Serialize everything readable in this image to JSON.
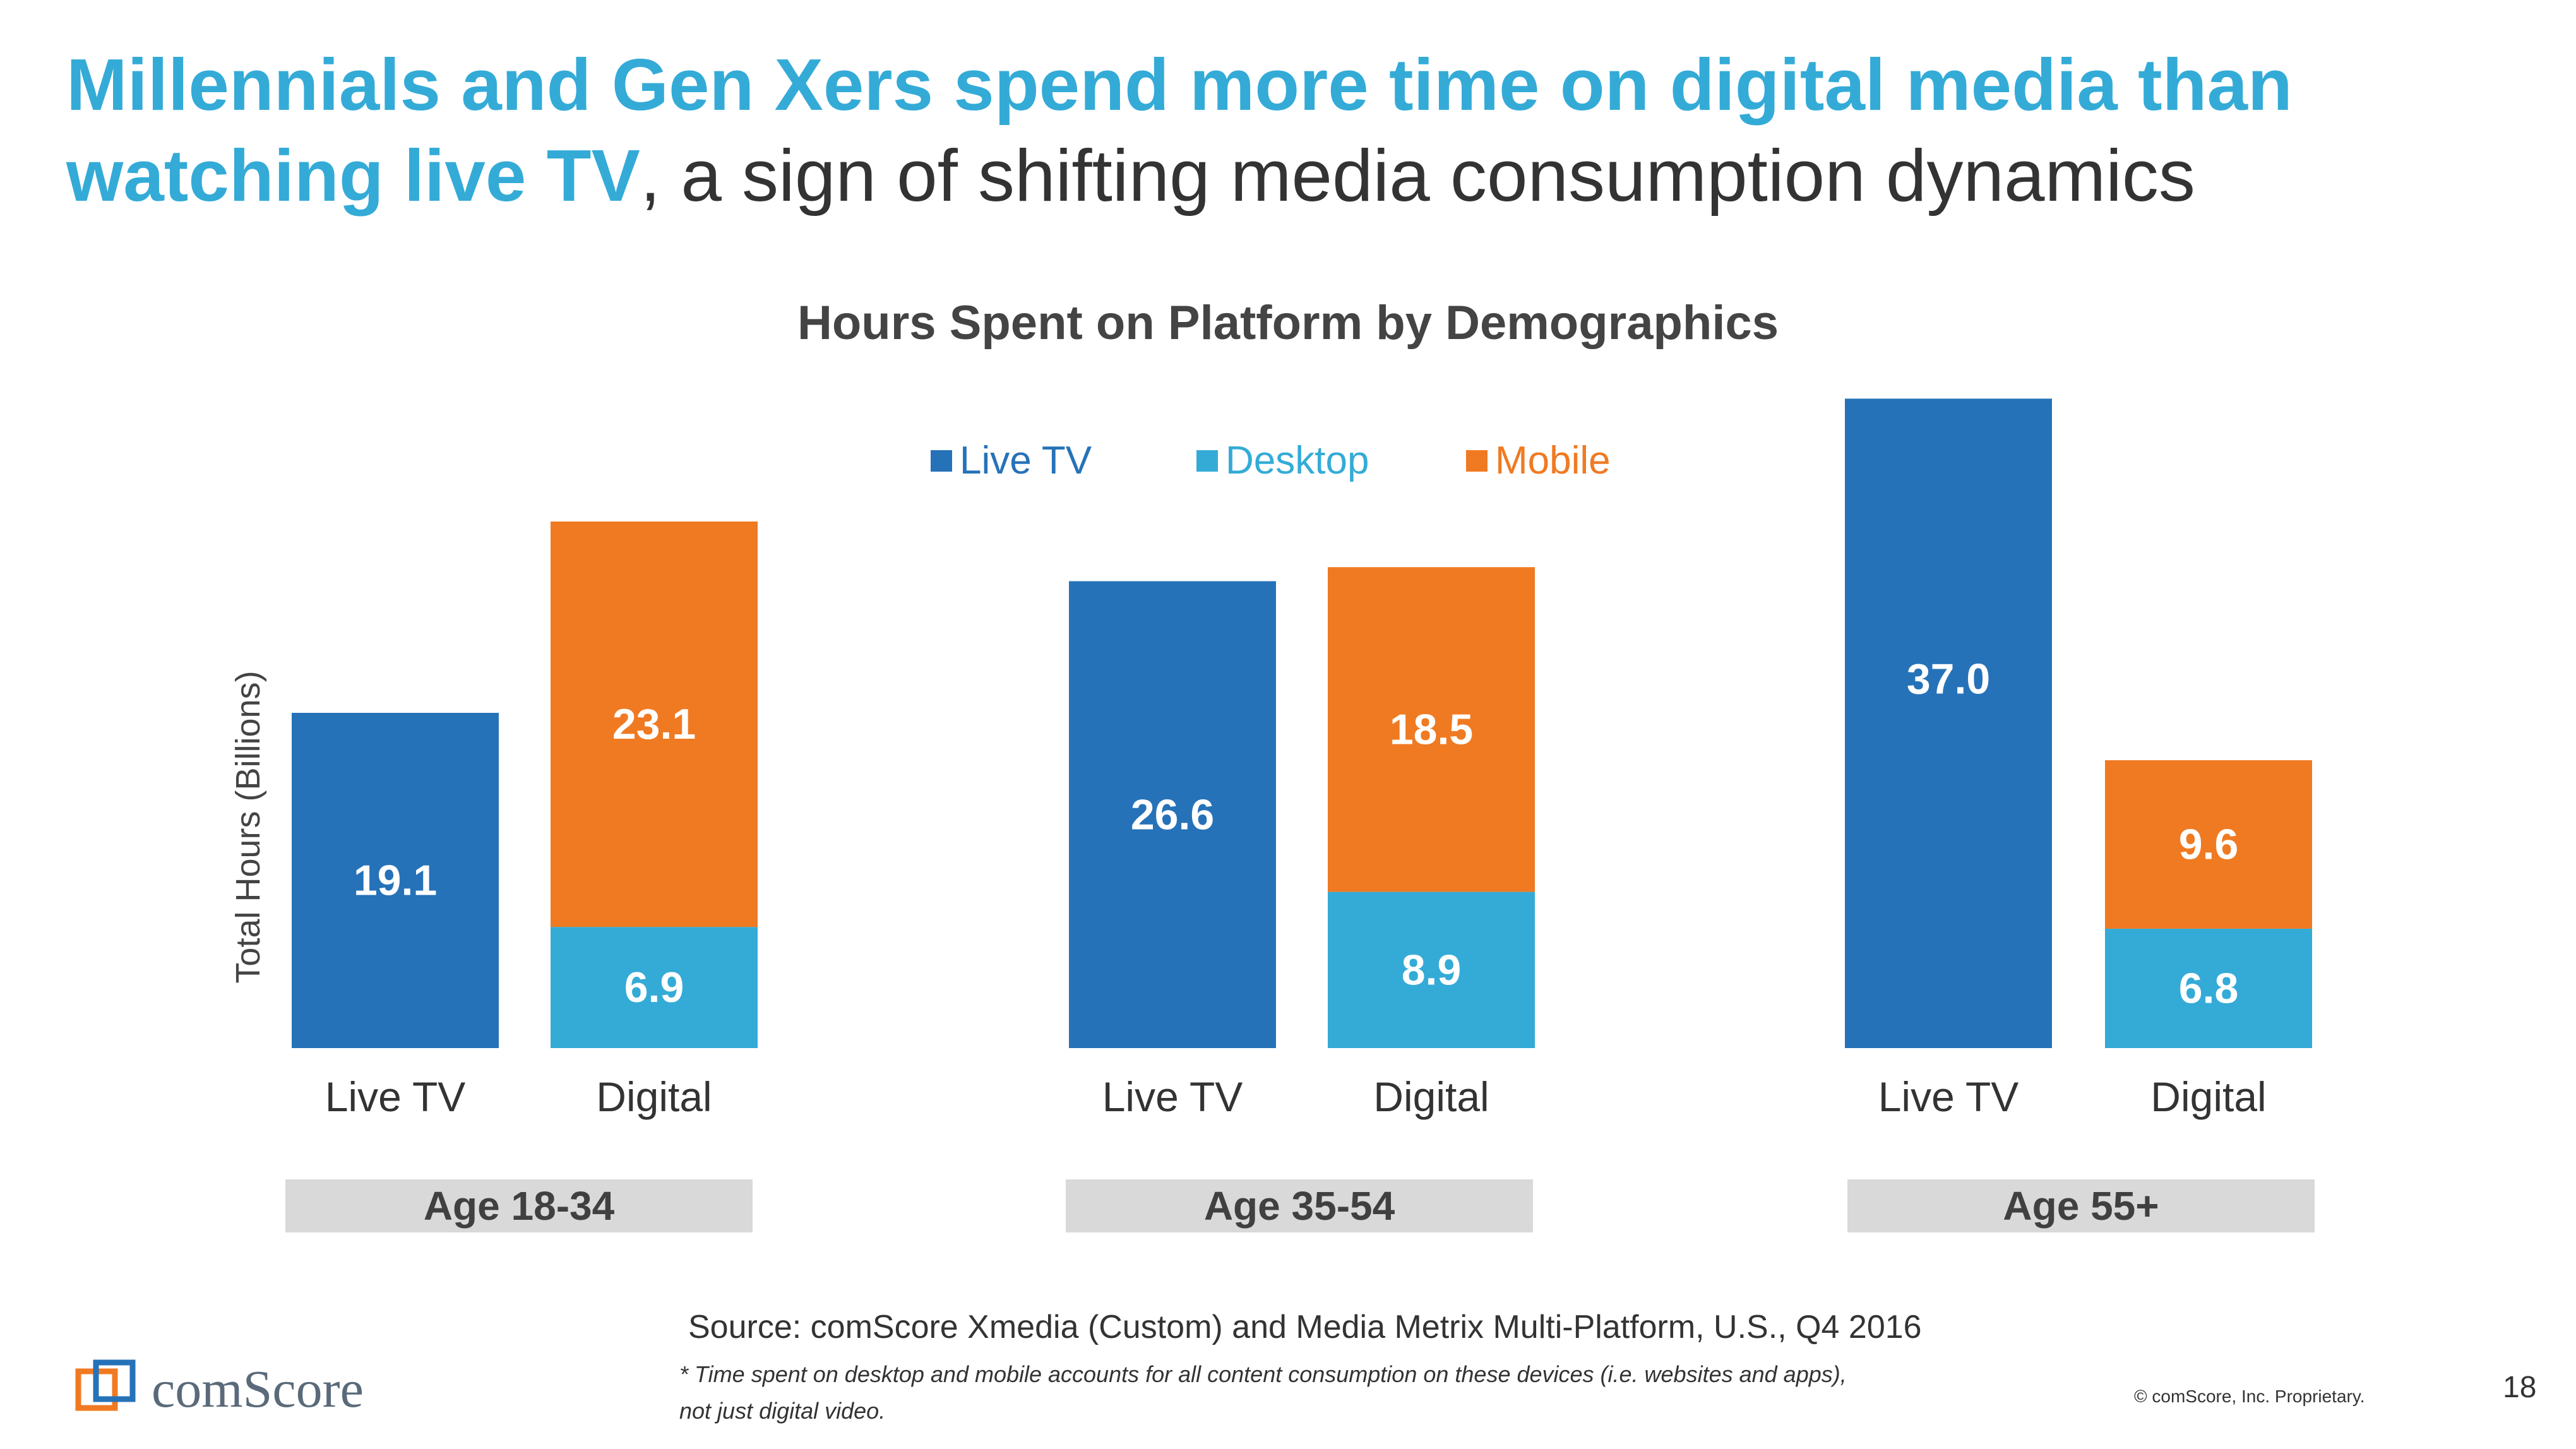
{
  "slide": {
    "title_highlight_1": "Millennials and Gen Xers spend more time on digital media than",
    "title_highlight_2": "watching live TV",
    "title_rest": ", a sign of shifting media consumption dynamics",
    "source": "Source: comScore Xmedia (Custom) and Media Metrix Multi-Platform, U.S., Q4 2016",
    "note_line1": "* Time spent on desktop and mobile accounts for all content consumption on these devices (i.e. websites and apps),",
    "note_line2": "not just digital video.",
    "logo_text": "comScore",
    "copyright": "© comScore, Inc. Proprietary.",
    "page_number": "18"
  },
  "colors": {
    "live_tv": "#2672b8",
    "desktop": "#34abd7",
    "mobile": "#f07a22",
    "title_accent": "#34abd7",
    "group_box": "#d9d9d9"
  },
  "chart_data": {
    "type": "bar",
    "stacked": true,
    "title": "Hours Spent on Platform by Demographics",
    "ylabel": "Total Hours (Billions)",
    "xlabel": "",
    "ylim": [
      0,
      40
    ],
    "grid": false,
    "legend": {
      "position": "top-center",
      "items": [
        {
          "key": "live_tv",
          "label": "Live TV"
        },
        {
          "key": "desktop",
          "label": "Desktop"
        },
        {
          "key": "mobile",
          "label": "Mobile"
        }
      ]
    },
    "groups": [
      {
        "label": "Age 18-34",
        "bars": [
          {
            "label": "Live TV",
            "segments": [
              {
                "series": "live_tv",
                "value": 19.1,
                "display": "19.1"
              }
            ]
          },
          {
            "label": "Digital",
            "segments": [
              {
                "series": "desktop",
                "value": 6.9,
                "display": "6.9"
              },
              {
                "series": "mobile",
                "value": 23.1,
                "display": "23.1"
              }
            ]
          }
        ]
      },
      {
        "label": "Age 35-54",
        "bars": [
          {
            "label": "Live TV",
            "segments": [
              {
                "series": "live_tv",
                "value": 26.6,
                "display": "26.6"
              }
            ]
          },
          {
            "label": "Digital",
            "segments": [
              {
                "series": "desktop",
                "value": 8.9,
                "display": "8.9"
              },
              {
                "series": "mobile",
                "value": 18.5,
                "display": "18.5"
              }
            ]
          }
        ]
      },
      {
        "label": "Age 55+",
        "bars": [
          {
            "label": "Live TV",
            "segments": [
              {
                "series": "live_tv",
                "value": 37.0,
                "display": "37.0"
              }
            ]
          },
          {
            "label": "Digital",
            "segments": [
              {
                "series": "desktop",
                "value": 6.8,
                "display": "6.8"
              },
              {
                "series": "mobile",
                "value": 9.6,
                "display": "9.6"
              }
            ]
          }
        ]
      }
    ]
  }
}
